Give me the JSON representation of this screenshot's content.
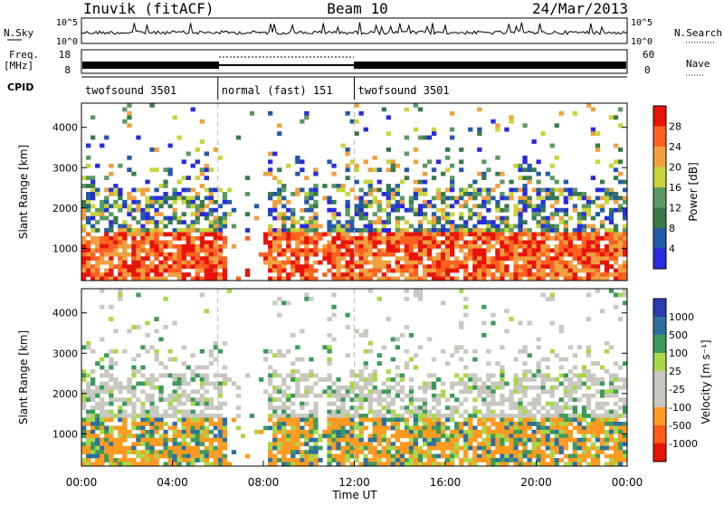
{
  "header": {
    "site": "Inuvik (fitACF)",
    "beam": "Beam 10",
    "date": "24/Mar/2013"
  },
  "strips": {
    "nsky_label": "N.Sky",
    "nsearch_label": "N.Search",
    "nsky_ticks": [
      "10^5",
      "10^0"
    ],
    "nsearch_ticks": [
      "10^5",
      "10^0"
    ],
    "freq_label": "Freq.",
    "freq_unit": "[MHz]",
    "freq_ticks": [
      "18",
      "8"
    ],
    "nave_label": "Nave",
    "nave_ticks": [
      "60",
      "0"
    ],
    "cpid_label": "CPID"
  },
  "cpid_segments": [
    {
      "label": "twofsound 3501",
      "start_hour": 0,
      "end_hour": 6
    },
    {
      "label": "normal (fast) 151",
      "start_hour": 6,
      "end_hour": 12
    },
    {
      "label": "twofsound 3501",
      "start_hour": 12,
      "end_hour": 24
    }
  ],
  "colors": {
    "power": [
      "#2a2ae0",
      "#235aa8",
      "#3a7a4a",
      "#5a9a62",
      "#c8d53a",
      "#f0a040",
      "#ff6020",
      "#e8140a"
    ],
    "velocity": [
      "#e8140a",
      "#ff5a1a",
      "#ff9a20",
      "#c8c8c0",
      "#c8c8c0",
      "#a8d848",
      "#3e9a5a",
      "#2e6ea0",
      "#2a3cb0"
    ]
  },
  "chart_data": [
    {
      "type": "heatmap",
      "name": "power",
      "xlabel": "",
      "ylabel": "Slant Range [km]",
      "xlim": [
        0,
        24
      ],
      "ylim": [
        200,
        4600
      ],
      "yticks": [
        "1000",
        "2000",
        "3000",
        "4000"
      ],
      "colorbar_label": "Power [dB]",
      "colorbar_ticks": [
        "4",
        "8",
        "12",
        "16",
        "20",
        "24",
        "28"
      ]
    },
    {
      "type": "heatmap",
      "name": "velocity",
      "xlabel": "Time UT",
      "ylabel": "Slant Range [km]",
      "xlim": [
        0,
        24
      ],
      "ylim": [
        200,
        4600
      ],
      "xticks": [
        "00:00",
        "04:00",
        "08:00",
        "12:00",
        "16:00",
        "20:00",
        "00:00"
      ],
      "yticks": [
        "1000",
        "2000",
        "3000",
        "4000"
      ],
      "colorbar_label": "Velocity [m s⁻¹]",
      "colorbar_ticks": [
        "1000",
        "500",
        "100",
        "25",
        "-25",
        "-100",
        "-500",
        "-1000"
      ]
    }
  ]
}
